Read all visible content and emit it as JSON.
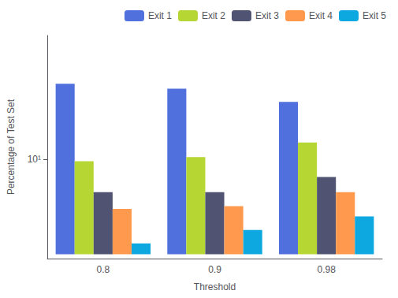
{
  "chart_data": {
    "type": "bar",
    "categories": [
      "0.8",
      "0.9",
      "0.98"
    ],
    "series": [
      {
        "name": "Exit 1",
        "values": [
          62,
          55,
          40
        ]
      },
      {
        "name": "Exit 2",
        "values": [
          9.5,
          10.5,
          15
        ]
      },
      {
        "name": "Exit 3",
        "values": [
          4.5,
          4.5,
          6.5
        ]
      },
      {
        "name": "Exit 4",
        "values": [
          3.0,
          3.2,
          4.5
        ]
      },
      {
        "name": "Exit 5",
        "values": [
          1.3,
          1.8,
          2.5
        ]
      }
    ],
    "xlabel": "Threshold",
    "ylabel": "Percentage of Test Set",
    "log": "y",
    "ylim": [
      0.9,
      200
    ],
    "yticks": [
      {
        "value": 10,
        "label": "10¹"
      }
    ],
    "grid": false,
    "legend": "upper right"
  }
}
